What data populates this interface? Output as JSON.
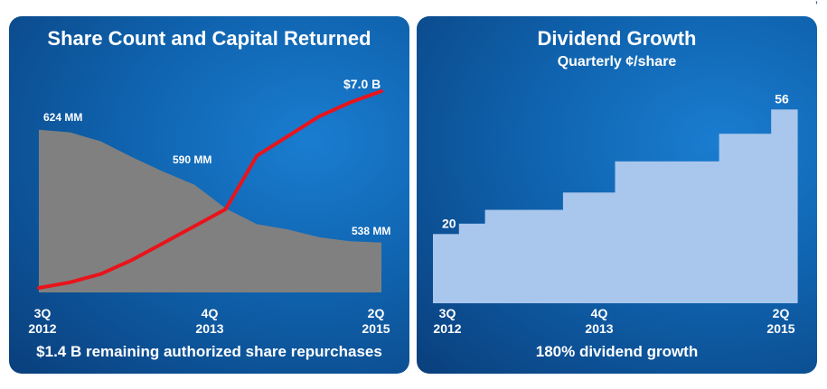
{
  "corner_mark": "’",
  "chart_data": [
    {
      "type": "area",
      "title": "Share Count and Capital Returned",
      "footer": "$1.4 B remaining authorized share repurchases",
      "x_ticks": [
        {
          "line1": "3Q",
          "line2": "2012"
        },
        {
          "line1": "4Q",
          "line2": "2013"
        },
        {
          "line1": "2Q",
          "line2": "2015"
        }
      ],
      "series": [
        {
          "kind": "area",
          "color": "#808080",
          "x": [
            0,
            1,
            2,
            3,
            4,
            5,
            6,
            7,
            8,
            9,
            10,
            11
          ],
          "values": [
            624,
            622,
            615,
            603,
            592,
            582,
            564,
            552,
            548,
            542,
            539,
            538
          ],
          "ylim": [
            500,
            630
          ]
        },
        {
          "kind": "line",
          "color": "#e8141b",
          "x": [
            0,
            1,
            2,
            3,
            4,
            5,
            6,
            7,
            8,
            9,
            10,
            11
          ],
          "values": [
            0,
            0.2,
            0.5,
            1.0,
            1.6,
            2.2,
            2.8,
            4.7,
            5.4,
            6.1,
            6.6,
            7.0
          ],
          "ylim": [
            0,
            7.0
          ]
        }
      ],
      "data_labels": [
        "624 MM",
        "590 MM",
        "538 MM",
        "$7.0 B"
      ]
    },
    {
      "type": "bar",
      "title": "Dividend Growth",
      "subtitle": "Quarterly ¢/share",
      "footer": "180% dividend growth",
      "x_ticks": [
        {
          "line1": "3Q",
          "line2": "2012"
        },
        {
          "line1": "4Q",
          "line2": "2013"
        },
        {
          "line1": "2Q",
          "line2": "2015"
        }
      ],
      "color": "#a9c6ec",
      "values": [
        20,
        23,
        27,
        27,
        27,
        32,
        32,
        41,
        41,
        41,
        41,
        49,
        49,
        56
      ],
      "ylim": [
        0,
        60
      ],
      "data_labels": [
        {
          "index": 0,
          "text": "20"
        },
        {
          "index": 13,
          "text": "56"
        }
      ]
    }
  ]
}
